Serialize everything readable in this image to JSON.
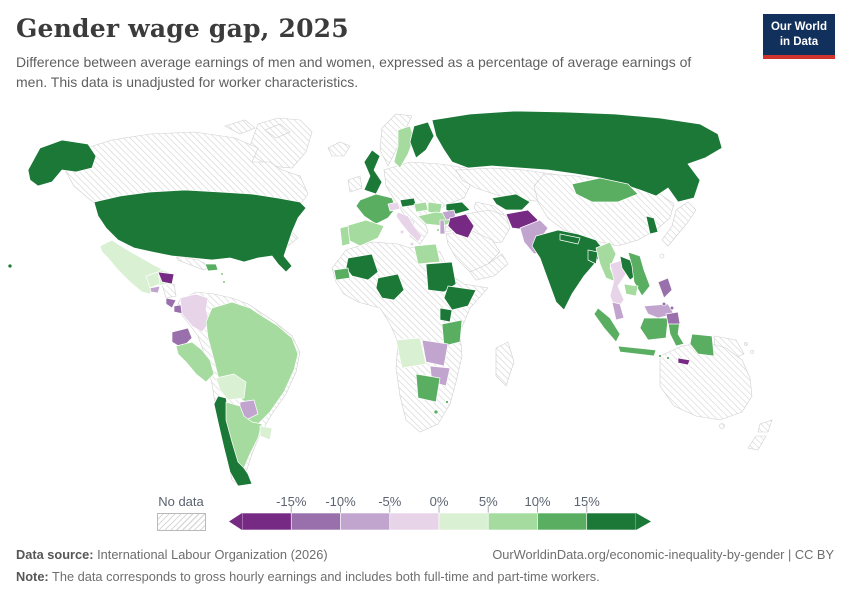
{
  "header": {
    "title": "Gender wage gap, 2025",
    "subtitle": "Difference between average earnings of men and women, expressed as a percentage of average earnings of men. This data is unadjusted for worker characteristics.",
    "logo": {
      "line1": "Our World",
      "line2": "in Data"
    }
  },
  "legend": {
    "no_data_label": "No data",
    "tick_labels": [
      "-15%",
      "-10%",
      "-5%",
      "0%",
      "5%",
      "10%",
      "15%"
    ]
  },
  "footer": {
    "source_label": "Data source:",
    "source_text": " International Labour Organization (2026)",
    "attribution": "OurWorldinData.org/economic-inequality-by-gender | CC BY",
    "note_label": "Note:",
    "note_text": " The data corresponds to gross hourly earnings and includes both full-time and part-time workers."
  },
  "colors": {
    "logo_navy": "#12305c",
    "logo_red": "#d0342c",
    "title_text": "#3b3b3b",
    "subtitle_text": "#5f5f5f",
    "legend_text": "#5b6370",
    "footer_text": "#6e6e6e",
    "hatch_line": "#d9d9d9",
    "nodata_border": "#cfcfcf",
    "country_border": "#ffffff"
  },
  "chart_data": {
    "type": "heatmap",
    "subtype": "choropleth-world-map",
    "title": "Gender wage gap, 2025",
    "unit": "percentage of average earnings of men",
    "legend_range": [
      -15,
      15
    ],
    "bins": [
      {
        "label": "< -15%",
        "color": "#762a83"
      },
      {
        "label": "-15% to -10%",
        "color": "#9970ab"
      },
      {
        "label": "-10% to -5%",
        "color": "#c2a5cf"
      },
      {
        "label": "-5% to 0%",
        "color": "#e7d4e8"
      },
      {
        "label": "0% to 5%",
        "color": "#d9f0d3"
      },
      {
        "label": "5% to 10%",
        "color": "#a6dba0"
      },
      {
        "label": "10% to 15%",
        "color": "#5aae61"
      },
      {
        "label": "> 15%",
        "color": "#1b7837"
      }
    ],
    "countries": {
      "United States": "> 15%",
      "Mexico": "0% to 5%",
      "Belize": "0% to 5%",
      "Guatemala": "0% to 5%",
      "Honduras": "< -15%",
      "El Salvador": "-10% to -5%",
      "Costa Rica": "-15% to -10%",
      "Panama": "-15% to -10%",
      "Dominican Republic": "10% to 15%",
      "Colombia": "-5% to 0%",
      "Ecuador": "-15% to -10%",
      "Peru": "5% to 10%",
      "Brazil": "5% to 10%",
      "Bolivia": "0% to 5%",
      "Paraguay": "-10% to -5%",
      "Chile": "> 15%",
      "Argentina": "5% to 10%",
      "Uruguay": "0% to 5%",
      "United Kingdom": "> 15%",
      "France": "10% to 15%",
      "Spain": "5% to 10%",
      "Portugal": "5% to 10%",
      "Sweden": "5% to 10%",
      "Finland": "> 15%",
      "Switzerland": "-5% to 0%",
      "Italy": "-5% to 0%",
      "Austria": "> 15%",
      "Hungary": "5% to 10%",
      "Romania": "5% to 10%",
      "Turkey": "5% to 10%",
      "Cyprus": "5% to 10%",
      "Russia": "> 15%",
      "Azerbaijan": "> 15%",
      "Uzbekistan": "> 15%",
      "Syria": "-10% to -5%",
      "Israel": "-10% to -5%",
      "Iraq": "< -15%",
      "Afghanistan": "< -15%",
      "Pakistan": "-10% to -5%",
      "India": "> 15%",
      "Nepal": "> 15%",
      "Bangladesh": "> 15%",
      "Mongolia": "10% to 15%",
      "South Korea": "> 15%",
      "Myanmar": "5% to 10%",
      "Thailand": "-5% to 0%",
      "Laos": "> 15%",
      "Vietnam": "10% to 15%",
      "Cambodia": "5% to 10%",
      "Malaysia": "-10% to -5%",
      "Indonesia": "10% to 15%",
      "Philippines": "-15% to -10%",
      "Timor-Leste": "< -15%",
      "Egypt": "5% to 10%",
      "Mali": "> 15%",
      "Senegal": "10% to 15%",
      "Nigeria": "> 15%",
      "Sudan": "> 15%",
      "Ethiopia": "> 15%",
      "Uganda": "> 15%",
      "Tanzania": "10% to 15%",
      "Angola": "0% to 5%",
      "Zambia": "-10% to -5%",
      "Zimbabwe": "-10% to -5%",
      "Botswana": "10% to 15%",
      "Lesotho": "10% to 15%",
      "Eswatini": "10% to 15%"
    },
    "no_data": [
      "Canada",
      "Greenland",
      "Cuba",
      "Nicaragua",
      "Venezuela",
      "Guyana",
      "Suriname",
      "Iceland",
      "Ireland",
      "Norway",
      "Germany",
      "Poland",
      "Belarus",
      "Ukraine",
      "Greece",
      "Balkans",
      "Kazakhstan",
      "Turkmenistan",
      "Iran",
      "Saudi Arabia",
      "Yemen",
      "Oman",
      "China",
      "Japan",
      "Taiwan",
      "Papua New Guinea",
      "Australia",
      "New Zealand",
      "Morocco",
      "Algeria",
      "Tunisia",
      "Libya",
      "Niger",
      "Chad",
      "DR Congo",
      "Kenya",
      "Somalia",
      "South Africa",
      "Namibia",
      "Mozambique",
      "Madagascar"
    ]
  }
}
